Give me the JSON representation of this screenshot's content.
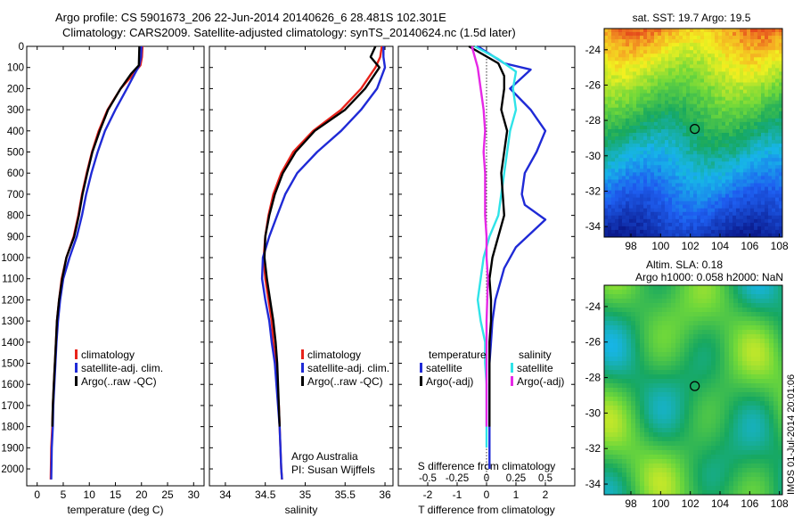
{
  "header": {
    "line1": "Argo profile: CS 5901673_206 22-Jun-2014 20140626_6 28.481S 102.301E",
    "line2": "Climatology: CARS2009. Satellite-adjusted climatology: synTS_20140624.nc (1.5d later)"
  },
  "side_stamp": "IMOS 01-Jul-2014 20:01:06",
  "colors": {
    "climatology": "#e8231b",
    "satellite": "#1f2ad6",
    "argo": "#000000",
    "sat_salinity": "#2fe3e8",
    "argo_salinity": "#e628e6"
  },
  "chart_data": [
    {
      "type": "line",
      "xlabel": "temperature (deg C)",
      "xlim": [
        -2,
        32
      ],
      "xticks": [
        0,
        5,
        10,
        15,
        20,
        25,
        30
      ],
      "ylim": [
        2080,
        0
      ],
      "yticks": [
        0,
        100,
        200,
        300,
        400,
        500,
        600,
        700,
        800,
        900,
        1000,
        1100,
        1200,
        1300,
        1400,
        1500,
        1600,
        1700,
        1800,
        1900,
        2000
      ],
      "legend": [
        "climatology",
        "satellite-adj. clim.",
        "Argo(..raw -QC)"
      ],
      "series": [
        {
          "name": "climatology",
          "color": "#e8231b",
          "x": [
            20.2,
            20.1,
            19.8,
            18.5,
            16.0,
            13.5,
            11.8,
            10.5,
            9.5,
            8.6,
            7.9,
            7.0,
            5.6,
            4.7,
            4.2,
            3.8,
            3.6,
            3.4,
            3.2,
            3.0,
            2.9,
            2.7,
            2.6
          ],
          "y": [
            0,
            50,
            90,
            130,
            200,
            300,
            400,
            500,
            600,
            700,
            800,
            900,
            1000,
            1100,
            1200,
            1300,
            1400,
            1500,
            1600,
            1700,
            1800,
            1900,
            2050
          ]
        },
        {
          "name": "satellite-adj. clim.",
          "color": "#1f2ad6",
          "x": [
            20.0,
            19.9,
            19.6,
            18.7,
            17.2,
            15.0,
            13.0,
            11.6,
            10.4,
            9.4,
            8.6,
            7.6,
            6.2,
            5.0,
            4.4,
            4.0,
            3.7,
            3.5,
            3.3,
            3.1,
            3.0,
            2.8,
            2.7
          ],
          "y": [
            0,
            50,
            90,
            130,
            200,
            300,
            400,
            500,
            600,
            700,
            800,
            900,
            1000,
            1100,
            1200,
            1300,
            1400,
            1500,
            1600,
            1700,
            1800,
            1900,
            2050
          ]
        },
        {
          "name": "Argo(..raw -QC)",
          "color": "#000000",
          "x": [
            19.6,
            19.5,
            18.0,
            16.0,
            13.6,
            12.0,
            10.6,
            9.6,
            8.7,
            8.0,
            7.1,
            5.6,
            4.8,
            4.2,
            3.8,
            3.6,
            3.4,
            3.2,
            3.0,
            2.9
          ],
          "y": [
            0,
            90,
            130,
            200,
            300,
            400,
            500,
            600,
            700,
            800,
            900,
            1000,
            1100,
            1200,
            1300,
            1400,
            1500,
            1600,
            1700,
            1800
          ]
        }
      ]
    },
    {
      "type": "line",
      "xlabel": "salinity",
      "xlim": [
        33.8,
        36.1
      ],
      "xticks": [
        34,
        34.5,
        35,
        35.5,
        36
      ],
      "xticklabels": [
        "34",
        "34.5",
        "35",
        "35.5",
        "36"
      ],
      "ylim": [
        2080,
        0
      ],
      "legend": [
        "climatology",
        "satellite-adj. clim.",
        "Argo(..raw -QC)"
      ],
      "annotation": [
        "Argo Australia",
        "PI: Susan Wijffels"
      ],
      "series": [
        {
          "name": "climatology",
          "color": "#e8231b",
          "x": [
            35.96,
            35.94,
            35.88,
            35.7,
            35.45,
            35.1,
            34.85,
            34.7,
            34.6,
            34.54,
            34.5,
            34.48,
            34.5,
            34.54,
            34.58,
            34.6,
            34.63,
            34.65,
            34.67,
            34.68,
            34.69,
            34.7,
            34.71
          ],
          "y": [
            0,
            50,
            100,
            200,
            300,
            400,
            500,
            600,
            700,
            800,
            900,
            1000,
            1100,
            1200,
            1300,
            1400,
            1500,
            1600,
            1700,
            1800,
            1900,
            2000,
            2050
          ]
        },
        {
          "name": "satellite-adj. clim.",
          "color": "#1f2ad6",
          "x": [
            35.98,
            35.98,
            36.0,
            35.9,
            35.7,
            35.45,
            35.15,
            34.9,
            34.75,
            34.65,
            34.55,
            34.47,
            34.46,
            34.5,
            34.55,
            34.58,
            34.62,
            34.64,
            34.66,
            34.68,
            34.69,
            34.7,
            34.71
          ],
          "y": [
            0,
            50,
            100,
            200,
            300,
            400,
            500,
            600,
            700,
            800,
            900,
            1000,
            1100,
            1200,
            1300,
            1400,
            1500,
            1600,
            1700,
            1800,
            1900,
            2000,
            2050
          ]
        },
        {
          "name": "Argo(..raw -QC)",
          "color": "#000000",
          "x": [
            35.88,
            35.82,
            35.93,
            35.75,
            35.5,
            35.12,
            34.88,
            34.72,
            34.62,
            34.55,
            34.5,
            34.49,
            34.52,
            34.56,
            34.6,
            34.63,
            34.65,
            34.66,
            34.67,
            34.68
          ],
          "y": [
            0,
            50,
            100,
            200,
            300,
            400,
            500,
            600,
            700,
            800,
            900,
            1000,
            1100,
            1200,
            1300,
            1400,
            1500,
            1600,
            1700,
            1800
          ]
        }
      ]
    },
    {
      "type": "line",
      "xlabel": "T difference from climatology",
      "xlabel_top": "S difference from climatology",
      "xlim": [
        -3,
        3
      ],
      "xticks": [
        -2,
        -1,
        0,
        1,
        2
      ],
      "sticks": [
        -0.5,
        -0.25,
        0,
        0.25,
        0.5
      ],
      "sticklabels": [
        "-0.5",
        "-0.25",
        "0",
        "0.25",
        "0.5"
      ],
      "ylim": [
        2080,
        0
      ],
      "legend_groups": [
        {
          "title": "temperature",
          "items": [
            "satellite",
            "Argo(-adj)"
          ]
        },
        {
          "title": "salinity",
          "items": [
            "satellite",
            "Argo(-adj)"
          ]
        }
      ],
      "series": [
        {
          "name": "satellite",
          "group": "temperature",
          "color": "#1f2ad6",
          "x": [
            -0.3,
            0.6,
            1.5,
            0.8,
            1.5,
            2.0,
            1.7,
            1.3,
            1.2,
            1.3,
            2.0,
            1.0,
            0.6,
            0.3,
            0.2,
            0.15,
            0.1,
            0.1,
            0.1,
            0.1,
            0.1
          ],
          "y": [
            0,
            80,
            110,
            200,
            300,
            400,
            500,
            600,
            700,
            750,
            820,
            950,
            1050,
            1200,
            1300,
            1400,
            1500,
            1600,
            1700,
            1850,
            2000
          ]
        },
        {
          "name": "satellite",
          "group": "salinity",
          "color": "#2fe3e8",
          "x": [
            -0.4,
            0.4,
            1.0,
            0.9,
            1.0,
            0.8,
            0.7,
            0.6,
            0.5,
            0.4,
            0.1,
            -0.1,
            -0.3,
            -0.2,
            -0.05,
            -0.05,
            0.0,
            0.0,
            0.0,
            0.0
          ],
          "y": [
            0,
            60,
            120,
            200,
            300,
            400,
            500,
            600,
            700,
            800,
            900,
            1000,
            1200,
            1300,
            1400,
            1500,
            1600,
            1700,
            1800,
            1900
          ]
        },
        {
          "name": "Argo(-adj)",
          "group": "temperature",
          "color": "#000000",
          "x": [
            -0.6,
            0.4,
            0.6,
            0.6,
            0.5,
            0.7,
            0.6,
            0.5,
            0.6,
            0.4,
            0.2,
            0.1,
            0.15,
            0.15,
            0.1,
            0.1,
            0.1,
            0.1
          ],
          "y": [
            0,
            80,
            140,
            200,
            300,
            400,
            500,
            600,
            800,
            900,
            1000,
            1100,
            1200,
            1300,
            1400,
            1500,
            1600,
            1800
          ]
        },
        {
          "name": "Argo(-adj)",
          "group": "salinity",
          "color": "#e628e6",
          "x": [
            -0.5,
            -0.3,
            -0.2,
            -0.1,
            -0.05,
            -0.1,
            -0.05,
            -0.05,
            0.0,
            0.0,
            0.05,
            0.0,
            0.0,
            0.0,
            0.0
          ],
          "y": [
            0,
            100,
            200,
            300,
            400,
            500,
            600,
            800,
            900,
            1000,
            1100,
            1300,
            1500,
            1700,
            1800
          ]
        }
      ]
    },
    {
      "type": "heatmap",
      "title": "sat. SST: 19.7 Argo: 19.5",
      "xlim": [
        96.2,
        108.2
      ],
      "ylim": [
        -34.6,
        -22.8
      ],
      "xticks": [
        98,
        100,
        102,
        104,
        106,
        108
      ],
      "yticks": [
        -24,
        -26,
        -28,
        -30,
        -32,
        -34
      ],
      "marker": {
        "lon": 102.3,
        "lat": -28.48
      }
    },
    {
      "type": "heatmap",
      "title": "Altim. SLA: 0.18",
      "subtitle": "Argo h1000: 0.058 h2000: NaN",
      "xlim": [
        96.2,
        108.2
      ],
      "ylim": [
        -34.6,
        -22.8
      ],
      "xticks": [
        98,
        100,
        102,
        104,
        106,
        108
      ],
      "yticks": [
        -24,
        -26,
        -28,
        -30,
        -32,
        -34
      ],
      "marker": {
        "lon": 102.3,
        "lat": -28.48
      }
    }
  ]
}
